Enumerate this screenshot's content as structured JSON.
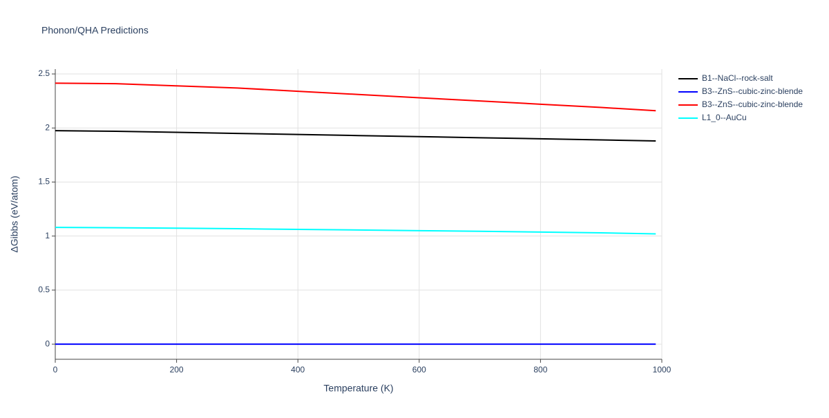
{
  "chart_data": {
    "type": "line",
    "title": "Phonon/QHA Predictions",
    "x_label": "Temperature (K)",
    "y_label": "ΔGibbs (eV/atom)",
    "x": [
      0,
      100,
      200,
      300,
      400,
      500,
      600,
      700,
      800,
      900,
      990
    ],
    "series": [
      {
        "name": "B1--NaCl--rock-salt",
        "color": "#000000",
        "values": [
          1.975,
          1.97,
          1.96,
          1.95,
          1.94,
          1.93,
          1.92,
          1.91,
          1.9,
          1.89,
          1.88
        ]
      },
      {
        "name": "B3--ZnS--cubic-zinc-blende",
        "color": "#0000ff",
        "values": [
          0,
          0,
          0,
          0,
          0,
          0,
          0,
          0,
          0,
          0,
          0
        ]
      },
      {
        "name": "B3--ZnS--cubic-zinc-blende",
        "color": "#ff0000",
        "values": [
          2.415,
          2.41,
          2.39,
          2.37,
          2.34,
          2.31,
          2.28,
          2.25,
          2.22,
          2.19,
          2.16
        ]
      },
      {
        "name": "L1_0--AuCu",
        "color": "#00ffff",
        "values": [
          1.08,
          1.077,
          1.073,
          1.068,
          1.062,
          1.056,
          1.05,
          1.044,
          1.037,
          1.03,
          1.02
        ]
      }
    ],
    "xlim": [
      0,
      1000
    ],
    "xticks": [
      0,
      200,
      400,
      600,
      800,
      1000
    ],
    "ylim": [
      -0.14,
      2.545
    ],
    "yticks": [
      0,
      0.5,
      1,
      1.5,
      2,
      2.5
    ],
    "grid": true,
    "legend": "right"
  }
}
